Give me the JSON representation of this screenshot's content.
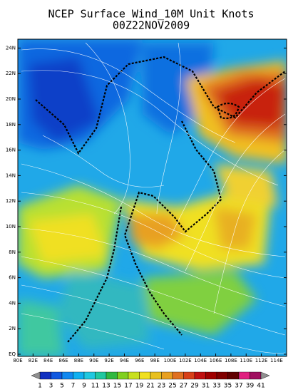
{
  "title": "NCEP Surface Wind_10M Unit Knots",
  "date": "00Z22NOV2009",
  "lat_labels": [
    "EQ",
    "2N",
    "4N",
    "6N",
    "8N",
    "10N",
    "12N",
    "14N",
    "16N",
    "18N",
    "20N",
    "22N",
    "24N"
  ],
  "lon_labels": [
    "80E",
    "82E",
    "84E",
    "86E",
    "88E",
    "90E",
    "92E",
    "94E",
    "96E",
    "98E",
    "100E",
    "102E",
    "104E",
    "106E",
    "108E",
    "110E",
    "112E",
    "114E"
  ],
  "colorbar": {
    "labels": [
      "1",
      "3",
      "5",
      "7",
      "9",
      "11",
      "13",
      "15",
      "17",
      "19",
      "21",
      "23",
      "25",
      "27",
      "29",
      "31",
      "33",
      "35",
      "37",
      "39",
      "41"
    ],
    "colors": [
      "#1030c0",
      "#1058e0",
      "#1088f0",
      "#10b0f0",
      "#20c8e0",
      "#20c8a0",
      "#30b840",
      "#80d020",
      "#c8e020",
      "#f0e020",
      "#e8c020",
      "#e8a020",
      "#e07020",
      "#d84018",
      "#c01010",
      "#a00000",
      "#800000",
      "#600000",
      "#e02080",
      "#a01060"
    ],
    "end_color": "#909090"
  }
}
